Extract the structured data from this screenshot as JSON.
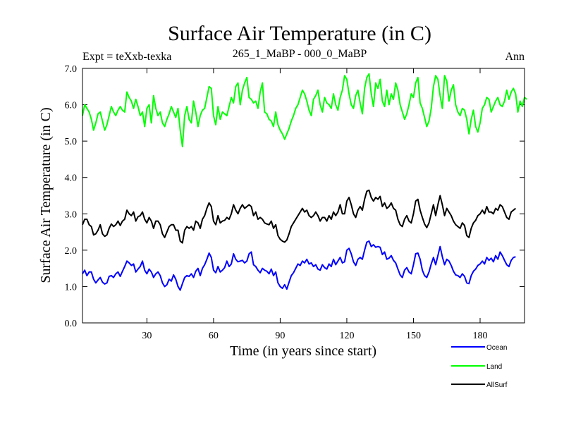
{
  "chart_data": {
    "type": "line",
    "title": "Surface Air Temperature (in C)",
    "subtitle_left": "Expt = teXxb-texka",
    "subtitle_center": "265_1_MaBP - 000_0_MaBP",
    "subtitle_right": "Ann",
    "xlabel": "Time (in years since start)",
    "ylabel": "Surface Air Temperature (in C)",
    "xlim": [
      1,
      200
    ],
    "ylim": [
      0,
      7
    ],
    "xticks": [
      30,
      60,
      90,
      120,
      150,
      180
    ],
    "xtick_labels": [
      "30",
      "60",
      "90",
      "120",
      "150",
      "180"
    ],
    "yticks": [
      0,
      1,
      2,
      3,
      4,
      5,
      6,
      7
    ],
    "ytick_labels": [
      "0.0",
      "1.0",
      "2.0",
      "3.0",
      "4.0",
      "5.0",
      "6.0",
      "7.0"
    ],
    "x_start": 1,
    "x_step": 1,
    "series": [
      {
        "name": "Ocean",
        "color": "#0000ff",
        "values": [
          1.35,
          1.45,
          1.3,
          1.4,
          1.4,
          1.2,
          1.1,
          1.18,
          1.25,
          1.12,
          1.07,
          1.1,
          1.28,
          1.3,
          1.25,
          1.35,
          1.4,
          1.28,
          1.42,
          1.55,
          1.7,
          1.65,
          1.58,
          1.62,
          1.4,
          1.48,
          1.55,
          1.7,
          1.45,
          1.35,
          1.48,
          1.4,
          1.25,
          1.35,
          1.4,
          1.3,
          1.1,
          1.0,
          1.05,
          1.2,
          1.15,
          1.32,
          1.2,
          1.0,
          0.9,
          1.08,
          1.25,
          1.3,
          1.28,
          1.35,
          1.25,
          1.42,
          1.5,
          1.3,
          1.5,
          1.6,
          1.75,
          1.92,
          1.8,
          1.45,
          1.38,
          1.55,
          1.4,
          1.45,
          1.52,
          1.7,
          1.55,
          1.62,
          1.9,
          1.75,
          1.68,
          1.7,
          1.72,
          1.65,
          1.7,
          1.9,
          1.95,
          1.6,
          1.55,
          1.45,
          1.38,
          1.5,
          1.45,
          1.42,
          1.35,
          1.48,
          1.3,
          1.4,
          1.1,
          1.0,
          0.95,
          1.05,
          0.93,
          1.12,
          1.3,
          1.38,
          1.5,
          1.62,
          1.58,
          1.7,
          1.65,
          1.75,
          1.62,
          1.65,
          1.55,
          1.6,
          1.48,
          1.45,
          1.6,
          1.52,
          1.48,
          1.62,
          1.55,
          1.75,
          1.6,
          1.7,
          1.8,
          1.65,
          1.68,
          2.0,
          2.05,
          1.9,
          1.68,
          1.58,
          1.75,
          1.8,
          1.75,
          2.0,
          2.22,
          2.25,
          2.1,
          2.15,
          2.08,
          2.1,
          2.08,
          1.88,
          1.95,
          1.75,
          1.78,
          1.85,
          1.72,
          1.65,
          1.48,
          1.32,
          1.25,
          1.45,
          1.52,
          1.4,
          1.35,
          1.6,
          1.9,
          1.92,
          1.75,
          1.45,
          1.3,
          1.25,
          1.4,
          1.62,
          1.8,
          1.6,
          1.85,
          2.1,
          1.82,
          1.6,
          1.75,
          1.7,
          1.58,
          1.42,
          1.32,
          1.3,
          1.25,
          1.35,
          1.28,
          1.1,
          1.08,
          1.3,
          1.42,
          1.48,
          1.58,
          1.62,
          1.7,
          1.62,
          1.8,
          1.72,
          1.78,
          1.68,
          1.85,
          1.75,
          1.95,
          1.85,
          1.72,
          1.6,
          1.55,
          1.72,
          1.8,
          1.82
        ]
      },
      {
        "name": "Land",
        "color": "#00ff00",
        "values": [
          5.7,
          6.0,
          5.9,
          5.8,
          5.6,
          5.3,
          5.5,
          5.75,
          5.8,
          5.55,
          5.3,
          5.45,
          5.7,
          5.95,
          5.8,
          5.7,
          5.85,
          5.95,
          5.85,
          5.8,
          6.35,
          6.2,
          6.1,
          5.9,
          6.15,
          5.95,
          5.7,
          5.8,
          5.4,
          5.9,
          6.0,
          5.5,
          6.25,
          5.9,
          5.7,
          5.8,
          5.5,
          5.4,
          5.6,
          5.75,
          5.95,
          5.8,
          5.65,
          5.9,
          5.3,
          4.85,
          5.7,
          5.95,
          5.6,
          5.5,
          6.1,
          5.8,
          5.4,
          5.7,
          5.85,
          5.9,
          6.2,
          6.5,
          6.45,
          5.7,
          5.45,
          5.95,
          5.6,
          5.8,
          5.75,
          5.7,
          5.95,
          6.2,
          6.05,
          6.5,
          6.6,
          6.0,
          6.4,
          6.6,
          6.75,
          6.2,
          6.15,
          6.05,
          6.1,
          5.9,
          6.35,
          6.6,
          5.8,
          5.75,
          5.6,
          5.55,
          5.4,
          5.8,
          5.45,
          5.3,
          5.2,
          5.05,
          5.2,
          5.35,
          5.55,
          5.7,
          5.9,
          6.0,
          6.2,
          6.4,
          6.3,
          6.1,
          5.85,
          5.7,
          6.15,
          6.25,
          6.4,
          6.0,
          5.8,
          6.2,
          6.05,
          6.0,
          5.9,
          6.3,
          6.0,
          5.85,
          6.2,
          6.4,
          6.8,
          6.7,
          6.3,
          6.0,
          5.9,
          6.25,
          6.4,
          6.05,
          5.75,
          6.45,
          6.75,
          6.85,
          6.3,
          5.95,
          6.6,
          6.45,
          6.7,
          6.1,
          5.95,
          6.4,
          6.0,
          6.3,
          6.15,
          6.6,
          6.4,
          6.0,
          5.8,
          5.6,
          5.75,
          6.0,
          6.3,
          6.2,
          6.6,
          6.75,
          6.05,
          5.9,
          5.65,
          5.4,
          5.55,
          5.9,
          6.5,
          6.8,
          6.7,
          6.25,
          5.9,
          6.8,
          6.65,
          6.1,
          6.4,
          6.55,
          6.0,
          5.8,
          5.7,
          5.9,
          5.85,
          5.6,
          5.2,
          5.6,
          5.85,
          5.4,
          5.25,
          5.5,
          5.9,
          6.0,
          6.2,
          6.15,
          5.8,
          5.95,
          6.1,
          6.2,
          6.0,
          5.95,
          6.1,
          6.4,
          6.15,
          6.35,
          6.45,
          6.3,
          5.8,
          6.1,
          5.95,
          6.2,
          6.15
        ]
      },
      {
        "name": "AllSurf",
        "color": "#000000",
        "values": [
          2.7,
          2.85,
          2.85,
          2.7,
          2.65,
          2.42,
          2.45,
          2.55,
          2.7,
          2.45,
          2.38,
          2.42,
          2.6,
          2.72,
          2.65,
          2.7,
          2.8,
          2.68,
          2.8,
          2.85,
          3.1,
          3.0,
          2.95,
          3.05,
          2.8,
          2.92,
          2.95,
          3.05,
          2.85,
          2.75,
          2.9,
          2.8,
          2.6,
          2.8,
          2.8,
          2.7,
          2.45,
          2.35,
          2.5,
          2.65,
          2.7,
          2.7,
          2.55,
          2.55,
          2.25,
          2.2,
          2.55,
          2.65,
          2.6,
          2.65,
          2.55,
          2.8,
          2.75,
          2.6,
          2.85,
          2.95,
          3.15,
          3.3,
          3.2,
          2.8,
          2.7,
          2.95,
          2.75,
          2.8,
          2.82,
          2.9,
          2.85,
          3.0,
          3.25,
          3.1,
          3.0,
          3.15,
          3.25,
          3.15,
          3.2,
          3.25,
          3.2,
          2.95,
          3.05,
          2.85,
          2.9,
          2.85,
          2.75,
          2.72,
          2.7,
          2.8,
          2.6,
          2.7,
          2.4,
          2.3,
          2.25,
          2.22,
          2.28,
          2.45,
          2.65,
          2.75,
          2.85,
          2.95,
          3.05,
          3.15,
          3.05,
          3.1,
          2.95,
          2.9,
          2.95,
          3.05,
          2.95,
          2.8,
          2.9,
          2.9,
          2.8,
          2.95,
          2.85,
          3.05,
          2.95,
          3.05,
          3.25,
          3.0,
          3.0,
          3.35,
          3.45,
          3.25,
          3.0,
          2.9,
          3.1,
          3.2,
          3.1,
          3.4,
          3.62,
          3.65,
          3.45,
          3.35,
          3.45,
          3.4,
          3.48,
          3.2,
          3.3,
          3.15,
          3.2,
          3.3,
          3.15,
          3.1,
          2.85,
          2.7,
          2.65,
          2.85,
          2.95,
          2.8,
          2.75,
          3.0,
          3.35,
          3.4,
          3.1,
          2.9,
          2.72,
          2.62,
          2.75,
          3.0,
          3.25,
          2.95,
          3.25,
          3.5,
          3.25,
          2.95,
          3.15,
          3.05,
          2.95,
          2.8,
          2.7,
          2.65,
          2.6,
          2.75,
          2.68,
          2.4,
          2.35,
          2.6,
          2.75,
          2.82,
          2.95,
          3.0,
          3.1,
          3.0,
          3.2,
          3.05,
          3.05,
          3.0,
          3.15,
          3.1,
          3.25,
          3.2,
          3.05,
          2.9,
          2.85,
          3.05,
          3.1,
          3.15
        ]
      }
    ]
  }
}
